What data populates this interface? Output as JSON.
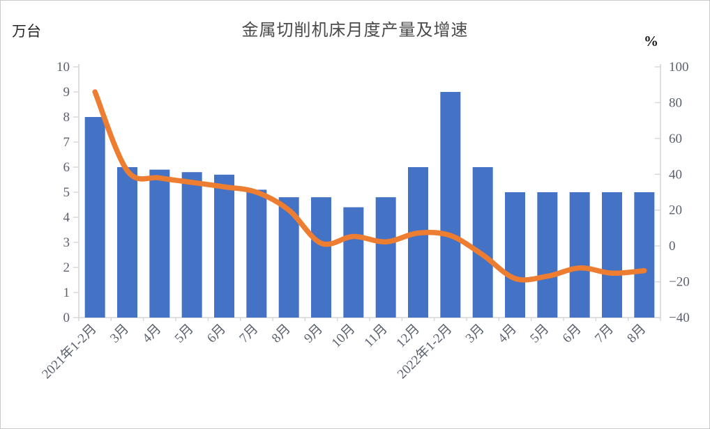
{
  "chart": {
    "title": "金属切削机床月度产量及增速",
    "left_axis_unit_label": "万台",
    "right_axis_unit_label": "%",
    "colors": {
      "bar": "#4472C4",
      "line": "#ED7D31",
      "axis": "#D6D6D6",
      "tick_text": "#5B616E",
      "title_text": "#4A4A4A"
    }
  },
  "chart_data": {
    "type": "bar",
    "subtype": "bar+line combo, dual y-axis, no legend, no gridlines",
    "title": "金属切削机床月度产量及增速",
    "categories": [
      "2021年1-2月",
      "3月",
      "4月",
      "5月",
      "6月",
      "7月",
      "8月",
      "9月",
      "10月",
      "11月",
      "12月",
      "2022年1-2月",
      "3月",
      "4月",
      "5月",
      "6月",
      "7月",
      "8月"
    ],
    "series": [
      {
        "name": "产量",
        "type": "bar",
        "y_axis": "left",
        "unit": "万台",
        "color": "#4472C4",
        "values": [
          8.0,
          6.0,
          5.9,
          5.8,
          5.7,
          5.1,
          4.8,
          4.8,
          4.4,
          4.8,
          6.0,
          9.0,
          6.0,
          5.0,
          5.0,
          5.0,
          5.0,
          5.0
        ]
      },
      {
        "name": "增速",
        "type": "line",
        "y_axis": "right",
        "unit": "%",
        "color": "#ED7D31",
        "smooth": true,
        "values": [
          86,
          42,
          38,
          35.5,
          33,
          30,
          20,
          1.5,
          5.3,
          2.3,
          7.2,
          5.8,
          -5,
          -18.2,
          -16.9,
          -12.3,
          -15.2,
          -13.8
        ]
      }
    ],
    "left_axis": {
      "unit": "万台",
      "min": 0,
      "max": 10,
      "step": 1,
      "tick_labels": [
        "0",
        "1",
        "2",
        "3",
        "4",
        "5",
        "6",
        "7",
        "8",
        "9",
        "10"
      ]
    },
    "right_axis": {
      "unit": "%",
      "min": -40,
      "max": 100,
      "step": 20,
      "tick_labels": [
        "−40",
        "−20",
        "0",
        "20",
        "40",
        "60",
        "80",
        "100"
      ]
    },
    "x_axis": {
      "label_rotation_deg": -45
    },
    "grid": false,
    "legend": {
      "visible": false
    }
  }
}
